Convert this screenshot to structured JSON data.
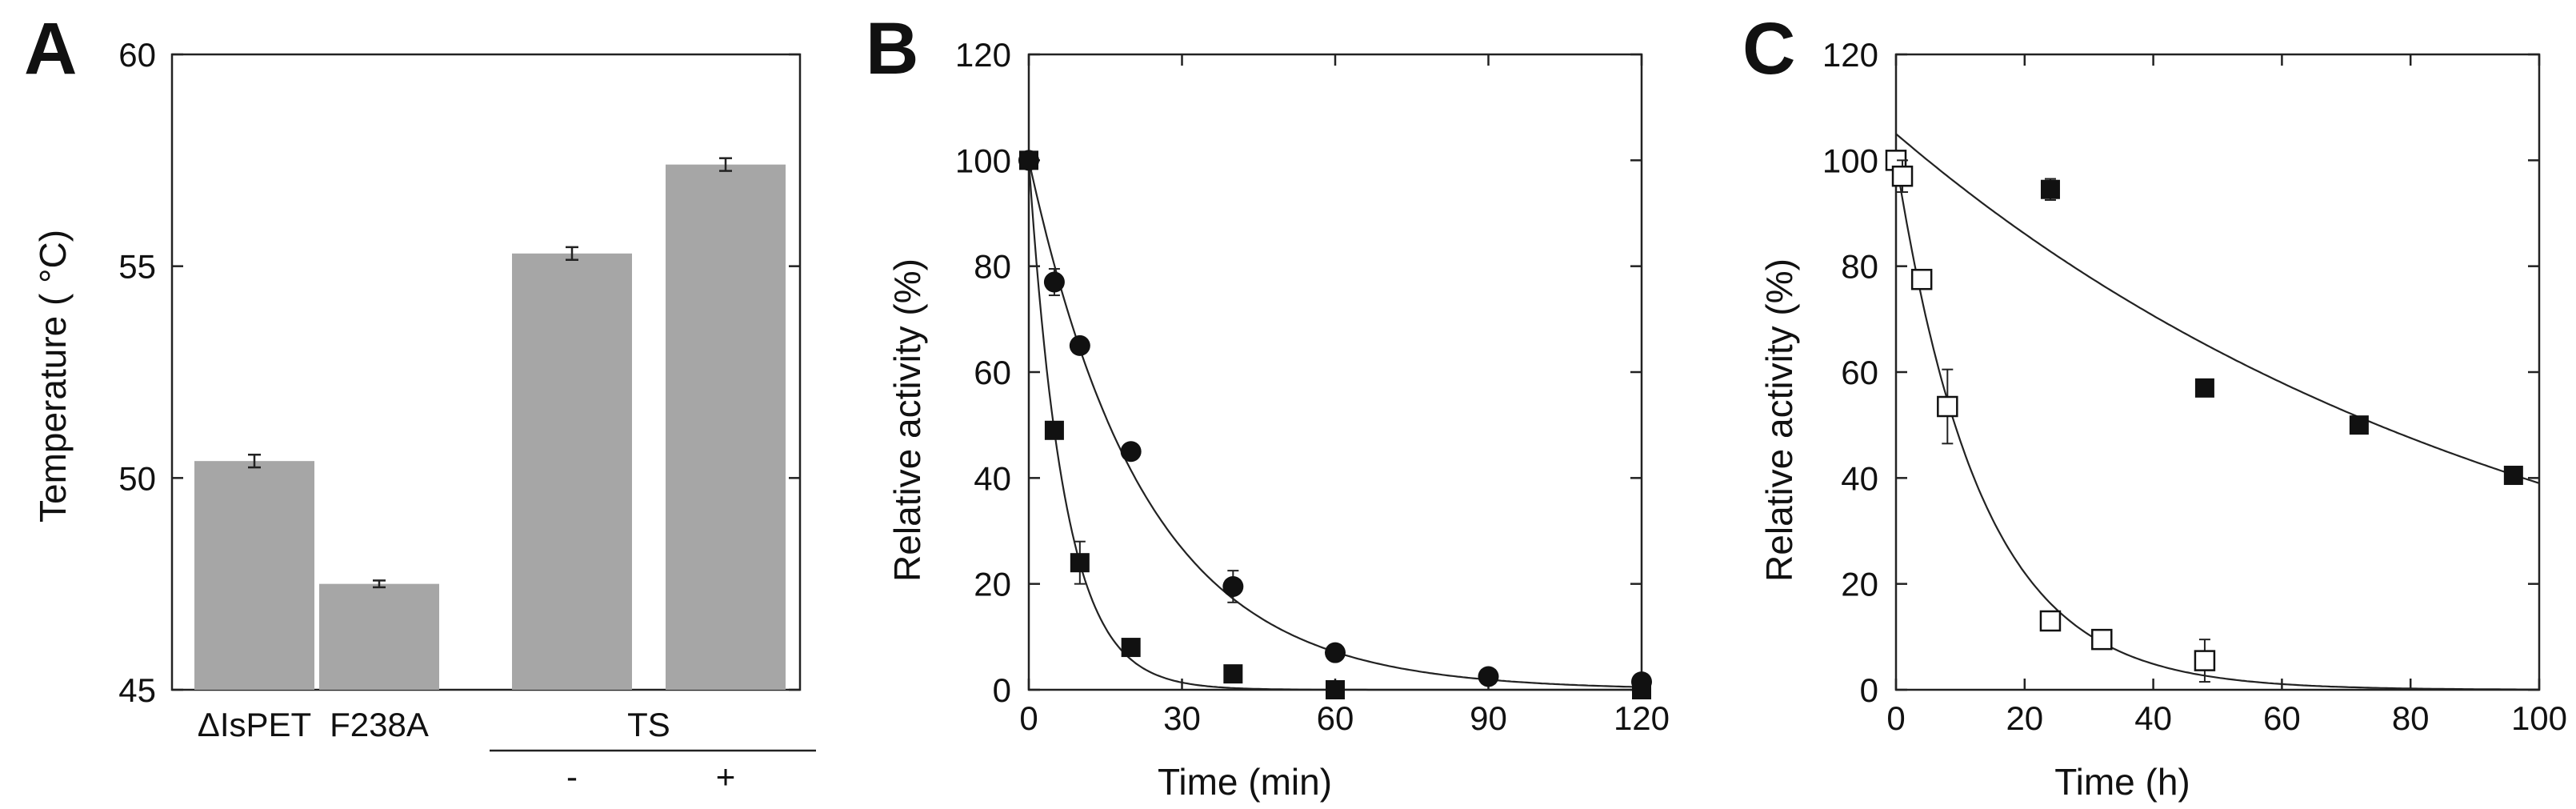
{
  "colors": {
    "bar": "#a6a6a6",
    "axis": "#222222",
    "marker": "#111111",
    "open_marker": "#ffffff"
  },
  "chart_data": [
    {
      "panel": "A",
      "type": "bar",
      "ylabel": "Temperature ( °C)",
      "ylim": [
        45,
        60
      ],
      "yticks": [
        45,
        50,
        55,
        60
      ],
      "categories": [
        "ΔIsPET",
        "F238A",
        "-",
        "+"
      ],
      "values": [
        50.4,
        47.5,
        55.3,
        57.4
      ],
      "errors": [
        0.15,
        0.08,
        0.15,
        0.15
      ],
      "group_label": "TS"
    },
    {
      "panel": "B",
      "type": "scatter",
      "xlabel": "Time (min)",
      "ylabel": "Relative activity (%)",
      "xlim": [
        0,
        120
      ],
      "ylim": [
        0,
        120
      ],
      "xticks": [
        0,
        30,
        60,
        90,
        120
      ],
      "yticks": [
        0,
        20,
        40,
        60,
        80,
        100,
        120
      ],
      "series": [
        {
          "name": "circle",
          "marker": "filled-circle",
          "x": [
            0,
            5,
            10,
            20,
            40,
            60,
            90,
            120
          ],
          "y": [
            100,
            77,
            65,
            45,
            19.5,
            7,
            2.5,
            1.5
          ],
          "err": [
            0,
            2.5,
            1,
            1.5,
            3,
            1.5,
            0.5,
            1
          ],
          "fit_k": 0.044
        },
        {
          "name": "square",
          "marker": "filled-square",
          "x": [
            0,
            5,
            10,
            20,
            40,
            60,
            120
          ],
          "y": [
            100,
            49,
            24,
            8,
            3,
            0,
            0
          ],
          "err": [
            0,
            1,
            4,
            1,
            0.5,
            0.5,
            0.5
          ],
          "fit_k": 0.143
        }
      ]
    },
    {
      "panel": "C",
      "type": "scatter",
      "xlabel": "Time (h)",
      "ylabel": "Relative activity (%)",
      "xlim": [
        0,
        100
      ],
      "ylim": [
        0,
        120
      ],
      "xticks": [
        0,
        20,
        40,
        60,
        80,
        100
      ],
      "yticks": [
        0,
        20,
        40,
        60,
        80,
        100,
        120
      ],
      "series": [
        {
          "name": "filled",
          "marker": "filled-square",
          "x": [
            24,
            48,
            72,
            96
          ],
          "y": [
            94.5,
            57,
            50,
            40.5
          ],
          "err": [
            2,
            1,
            1,
            1.5
          ],
          "fit_a": 105,
          "fit_k": 0.0099
        },
        {
          "name": "open",
          "marker": "open-square",
          "x": [
            0,
            1,
            4,
            8,
            24,
            32,
            48
          ],
          "y": [
            100,
            97,
            77.5,
            53.5,
            13,
            9.5,
            5.5
          ],
          "err": [
            0,
            3,
            1.5,
            7,
            1,
            1,
            4
          ],
          "fit_a": 100,
          "fit_k": 0.0755
        }
      ]
    }
  ]
}
